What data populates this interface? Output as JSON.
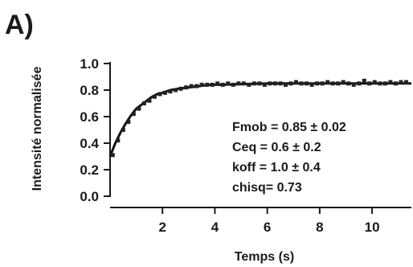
{
  "panel_label": "A)",
  "chart_data": {
    "type": "scatter",
    "title": "",
    "xlabel": "Temps (s)",
    "ylabel": "Intensité normalisée",
    "xlim": [
      0,
      11.5
    ],
    "ylim": [
      0,
      1.0
    ],
    "x_ticks": [
      2,
      4,
      6,
      8,
      10
    ],
    "y_ticks": [
      "0.0",
      "0.2",
      "0.4",
      "0.6",
      "0.8",
      "1.0"
    ],
    "grid": false,
    "series": [
      {
        "kind": "points",
        "x": [
          0.1,
          0.3,
          0.5,
          0.7,
          0.9,
          1.1,
          1.3,
          1.5,
          1.7,
          1.9,
          2.1,
          2.3,
          2.5,
          2.7,
          2.9,
          3.1,
          3.3,
          3.5,
          3.7,
          3.9,
          4.1,
          4.3,
          4.5,
          4.7,
          4.9,
          5.1,
          5.3,
          5.5,
          5.7,
          5.9,
          6.1,
          6.3,
          6.5,
          6.7,
          6.9,
          7.1,
          7.3,
          7.5,
          7.7,
          7.9,
          8.1,
          8.3,
          8.5,
          8.7,
          8.9,
          9.1,
          9.3,
          9.5,
          9.7,
          9.9,
          10.1,
          10.3,
          10.5,
          10.7,
          10.9,
          11.1,
          11.3
        ],
        "y": [
          0.31,
          0.42,
          0.5,
          0.56,
          0.62,
          0.66,
          0.7,
          0.72,
          0.75,
          0.77,
          0.78,
          0.79,
          0.8,
          0.81,
          0.82,
          0.83,
          0.83,
          0.84,
          0.84,
          0.84,
          0.85,
          0.84,
          0.85,
          0.84,
          0.85,
          0.85,
          0.84,
          0.85,
          0.85,
          0.84,
          0.85,
          0.85,
          0.85,
          0.84,
          0.85,
          0.86,
          0.85,
          0.85,
          0.84,
          0.85,
          0.85,
          0.86,
          0.85,
          0.85,
          0.86,
          0.85,
          0.84,
          0.85,
          0.87,
          0.85,
          0.86,
          0.85,
          0.85,
          0.86,
          0.85,
          0.86,
          0.86
        ]
      },
      {
        "kind": "fit",
        "x": [
          0.0,
          0.2,
          0.4,
          0.6,
          0.8,
          1.0,
          1.2,
          1.4,
          1.6,
          1.8,
          2.0,
          2.3,
          2.6,
          3.0,
          3.4,
          3.8,
          4.3,
          5.0,
          6.0,
          7.0,
          8.0,
          9.0,
          10.0,
          11.0,
          11.5
        ],
        "y": [
          0.3,
          0.4,
          0.48,
          0.55,
          0.61,
          0.66,
          0.69,
          0.72,
          0.75,
          0.77,
          0.78,
          0.8,
          0.81,
          0.82,
          0.83,
          0.84,
          0.84,
          0.845,
          0.85,
          0.85,
          0.85,
          0.85,
          0.85,
          0.85,
          0.85
        ]
      }
    ],
    "annotations": [
      "Fmob = 0.85 ± 0.02",
      "Ceq = 0.6 ± 0.2",
      "koff = 1.0 ± 0.4",
      "chisq= 0.73"
    ]
  }
}
